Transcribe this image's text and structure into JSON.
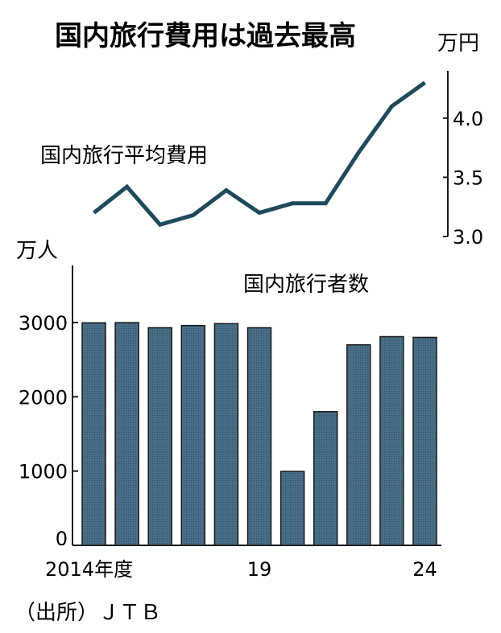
{
  "title": "国内旅行費用は過去最高",
  "source": "（出所）ＪＴＢ",
  "chart_data": [
    {
      "type": "line",
      "series_label": "国内旅行平均費用",
      "unit": "万円",
      "x": [
        "2014",
        "2015",
        "2016",
        "2017",
        "2018",
        "2019",
        "2020",
        "2021",
        "2022",
        "2023",
        "2024"
      ],
      "values": [
        3.2,
        3.42,
        3.1,
        3.18,
        3.39,
        3.2,
        3.28,
        3.28,
        3.71,
        4.1,
        4.3
      ],
      "ylim": [
        3.0,
        4.4
      ],
      "yticks": [
        3.0,
        3.5,
        4.0
      ],
      "ytick_labels": [
        "3.0",
        "3.5",
        "4.0"
      ],
      "color": "#1f4a5c"
    },
    {
      "type": "bar",
      "series_label": "国内旅行者数",
      "unit": "万人",
      "categories": [
        "2014",
        "2015",
        "2016",
        "2017",
        "2018",
        "2019",
        "2020",
        "2021",
        "2022",
        "2023",
        "2024"
      ],
      "values": [
        2996,
        2999,
        2930,
        2960,
        2985,
        2930,
        995,
        1800,
        2700,
        2810,
        2800
      ],
      "ylim": [
        0,
        3000
      ],
      "yticks": [
        0,
        1000,
        2000,
        3000
      ],
      "ytick_labels": [
        "0",
        "1000",
        "2000",
        "3000"
      ],
      "xtick_labels": [
        {
          "category": "2014",
          "label": "2014年度"
        },
        {
          "category": "2019",
          "label": "19"
        },
        {
          "category": "2024",
          "label": "24"
        }
      ],
      "color": "#4a6f88"
    }
  ]
}
